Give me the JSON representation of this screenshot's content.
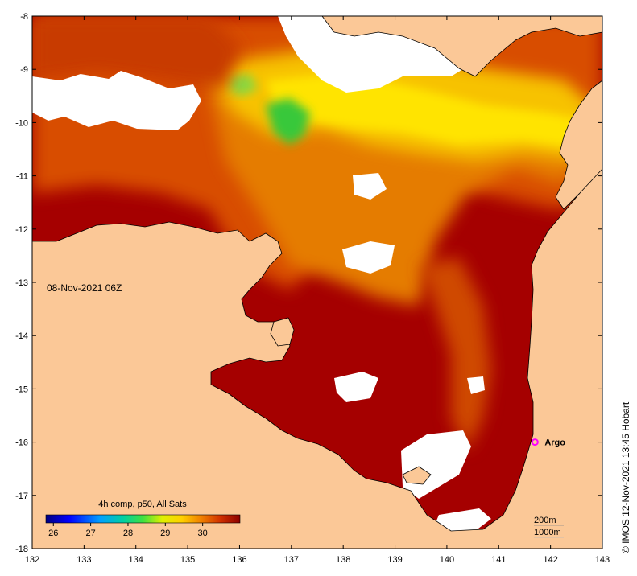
{
  "map": {
    "date_label": "08-Nov-2021 06Z",
    "credit": "© IMOS 12-Nov-2021 13:45 Hobart",
    "lon_range": [
      132,
      143
    ],
    "lat_range": [
      -18,
      -8
    ],
    "lon_ticks": [
      "132",
      "133",
      "134",
      "135",
      "136",
      "137",
      "138",
      "139",
      "140",
      "141",
      "142",
      "143"
    ],
    "lat_ticks": [
      "-8",
      "-9",
      "-10",
      "-11",
      "-12",
      "-13",
      "-14",
      "-15",
      "-16",
      "-17",
      "-18"
    ],
    "colorbar": {
      "title": "4h comp, p50, All Sats",
      "ticks": [
        "26",
        "27",
        "28",
        "29",
        "30"
      ],
      "range": [
        25.8,
        31.0
      ]
    },
    "isobaths": [
      "200m",
      "1000m"
    ],
    "argo": {
      "label": "Argo",
      "lon": 141.7,
      "lat": -16.0
    },
    "colors": {
      "land": "#fbc897",
      "hot": "#a50000",
      "warm": "#e06000",
      "mid": "#f2a400",
      "cool": "#ffe600",
      "green": "#2fc83a",
      "argo": "#ff00ff"
    }
  }
}
